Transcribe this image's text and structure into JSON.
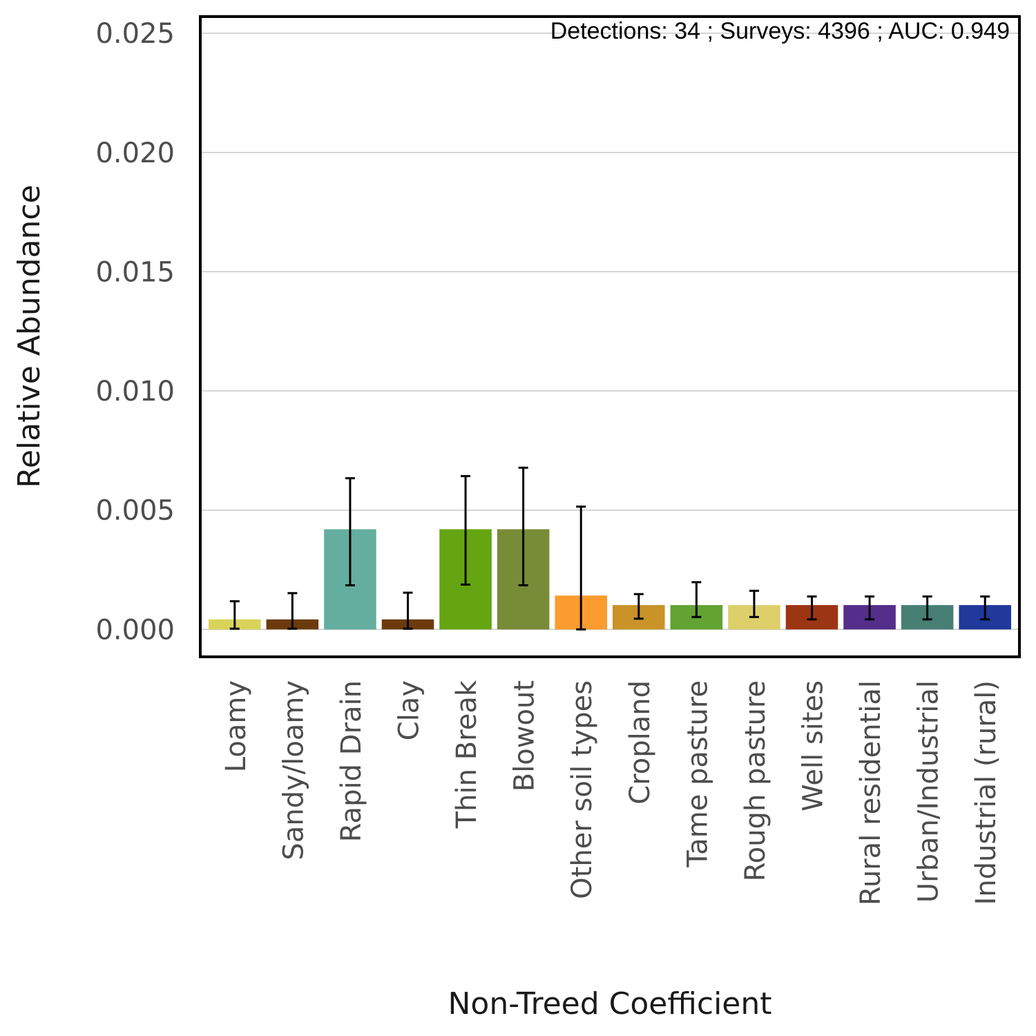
{
  "chart_data": {
    "type": "bar",
    "annotation": "Detections: 34 ; Surveys: 4396 ; AUC: 0.949",
    "xlabel": "Non-Treed Coefficient",
    "ylabel": "Relative Abundance",
    "ylim": [
      -0.00115,
      0.0257
    ],
    "yticks": [
      "0.000",
      "0.005",
      "0.010",
      "0.015",
      "0.020",
      "0.025"
    ],
    "grid": "horizontal",
    "categories": [
      "Loamy",
      "Sandy/loamy",
      "Rapid Drain",
      "Clay",
      "Thin Break",
      "Blowout",
      "Other soil types",
      "Cropland",
      "Tame pasture",
      "Rough pasture",
      "Well sites",
      "Rural residential",
      "Urban/Industrial",
      "Industrial (rural)"
    ],
    "values": [
      0.00042,
      0.00042,
      0.0042,
      0.00042,
      0.0042,
      0.0042,
      0.00142,
      0.00102,
      0.00102,
      0.00102,
      0.00102,
      0.00102,
      0.00102,
      0.00102
    ],
    "lower": [
      3e-05,
      3e-05,
      0.00185,
      3e-05,
      0.00188,
      0.00185,
      0.0,
      0.00045,
      0.00052,
      0.00052,
      0.00042,
      0.00042,
      0.00042,
      0.00042
    ],
    "upper": [
      0.00118,
      0.00152,
      0.00634,
      0.00154,
      0.00643,
      0.00678,
      0.00515,
      0.00148,
      0.00198,
      0.00162,
      0.00138,
      0.00138,
      0.00138,
      0.00138
    ],
    "colors": [
      "#d9d35a",
      "#6b3a0d",
      "#63ae9f",
      "#6b3a0d",
      "#65a511",
      "#788b37",
      "#fc9b2f",
      "#c99328",
      "#62a332",
      "#ddd06a",
      "#9c3513",
      "#552d8b",
      "#477f75",
      "#20399a"
    ]
  }
}
